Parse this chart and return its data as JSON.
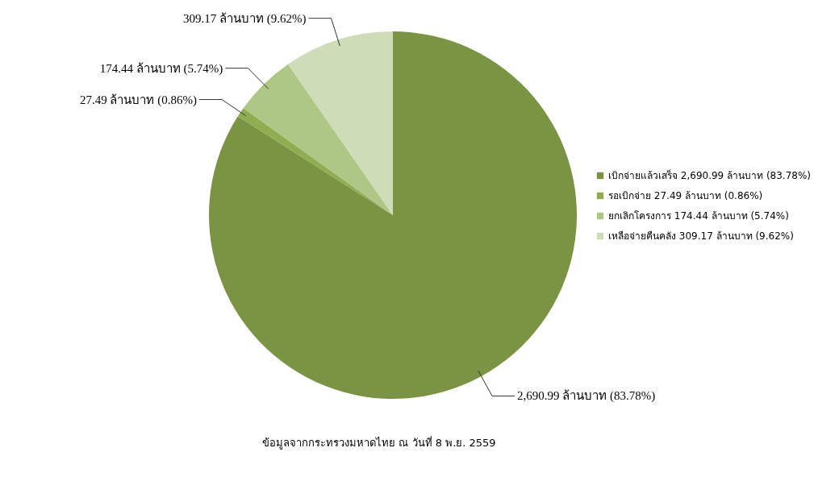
{
  "chart_data": {
    "type": "pie",
    "categories": [
      "เบิกจ่ายแล้วเสร็จ 2,690.99 ล้านบาท (83.78%)",
      "รอเบิกจ่าย 27.49 ล้านบาท (0.86%)",
      "ยกเลิกโครงการ 174.44 ล้านบาท (5.74%)",
      "เหลือจ่ายคืนคลัง 309.17 ล้านบาท (9.62%)"
    ],
    "values": [
      2690.99,
      27.49,
      174.44,
      309.17
    ],
    "value_labels": [
      "2,690.99 ล้านบาท (83.78%)",
      "27.49 ล้านบาท (0.86%)",
      "174.44 ล้านบาท (5.74%)",
      "309.17 ล้านบาท (9.62%)"
    ],
    "colors": [
      "#7a9443",
      "#8fae52",
      "#afc785",
      "#cfdcb8"
    ],
    "legend": "right",
    "annotations": [
      "ข้อมูลจากกระทรวงมหาดไทย ณ วันที่ 8 พ.ย. 2559"
    ]
  }
}
